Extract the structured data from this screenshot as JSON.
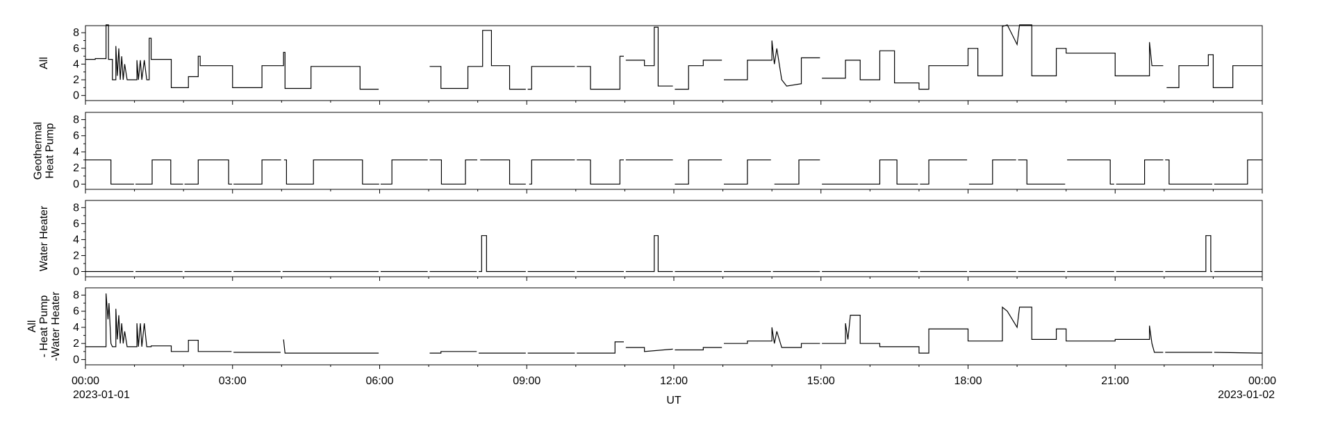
{
  "xaxis": {
    "xlim": [
      0,
      24
    ],
    "xticks": [
      {
        "value": 0,
        "label": "00:00"
      },
      {
        "value": 3,
        "label": "03:00"
      },
      {
        "value": 6,
        "label": "06:00"
      },
      {
        "value": 9,
        "label": "09:00"
      },
      {
        "value": 12,
        "label": "12:00"
      },
      {
        "value": 15,
        "label": "15:00"
      },
      {
        "value": 18,
        "label": "18:00"
      },
      {
        "value": 21,
        "label": "21:00"
      },
      {
        "value": 24,
        "label": "00:00"
      }
    ],
    "date_labels": [
      {
        "value": 0,
        "label": "2023-01-01"
      },
      {
        "value": 24,
        "label": "2023-01-02"
      }
    ],
    "xminorticks": [
      1,
      2,
      4,
      5,
      7,
      8,
      10,
      11,
      13,
      14,
      16,
      17,
      19,
      20,
      22,
      23
    ],
    "xlabel": "UT"
  },
  "chart_data": [
    {
      "type": "line",
      "ylabel": [
        "All"
      ],
      "color": "#000000",
      "ylim": [
        -0.65,
        8.9
      ],
      "yticks": [
        0,
        2,
        4,
        6,
        8
      ],
      "yminorticks": [
        1,
        3,
        5,
        7
      ],
      "x": [
        0,
        0.2,
        0.2,
        0.42,
        0.42,
        0.47,
        0.47,
        0.55,
        0.55,
        0.62,
        0.62,
        0.65,
        0.68,
        0.71,
        0.74,
        0.77,
        0.8,
        0.85,
        1.05,
        1.05,
        1.08,
        1.12,
        1.15,
        1.2,
        1.25,
        1.3,
        1.3,
        1.34,
        1.34,
        1.75,
        1.75,
        2.1,
        2.1,
        2.3,
        2.3,
        2.34,
        2.34,
        3.0,
        3.0,
        3.6,
        3.6,
        4.04,
        4.04,
        4.07,
        4.07,
        4.6,
        4.6,
        5.6,
        5.6,
        5.98,
        6.0,
        7.02,
        7.25,
        7.25,
        7.8,
        7.8,
        8.1,
        8.1,
        8.28,
        8.28,
        8.65,
        8.65,
        8.98,
        9.0,
        9.02,
        9.1,
        9.1,
        9.98,
        10.0,
        10.02,
        10.3,
        10.3,
        10.9,
        10.9,
        10.98,
        11.0,
        11.02,
        11.4,
        11.4,
        11.6,
        11.6,
        11.68,
        11.68,
        11.98,
        12.0,
        12.02,
        12.3,
        12.3,
        12.6,
        12.6,
        12.98,
        13.0,
        13.02,
        13.5,
        13.5,
        14.0,
        14.0,
        14.05,
        14.1,
        14.2,
        14.3,
        14.6,
        14.6,
        14.98,
        15.0,
        15.02,
        15.5,
        15.5,
        15.8,
        15.8,
        16.2,
        16.2,
        16.5,
        16.5,
        17.0,
        17.0,
        17.2,
        17.2,
        18.0,
        18.0,
        18.2,
        18.2,
        18.7,
        18.7,
        18.8,
        19.0,
        19.05,
        19.3,
        19.3,
        19.8,
        19.8,
        20.0,
        20.0,
        21.0,
        21.0,
        21.7,
        21.7,
        21.75,
        21.98,
        22.0,
        22.05,
        22.3,
        22.3,
        22.9,
        22.9,
        23.0,
        23.0,
        23.4,
        23.4,
        24
      ],
      "values": [
        4.6,
        4.6,
        4.7,
        4.7,
        9,
        9,
        4.6,
        4.6,
        2,
        2,
        6.3,
        2.5,
        6,
        2,
        5,
        2,
        4,
        2,
        2,
        4.5,
        2,
        4.5,
        2,
        4.5,
        2,
        2,
        7.3,
        7.3,
        4.6,
        4.6,
        1,
        1,
        2.4,
        2.4,
        5,
        5,
        3.8,
        3.8,
        1,
        1,
        3.8,
        3.8,
        5.5,
        5.5,
        0.9,
        0.9,
        3.7,
        3.7,
        0.8,
        0.8,
        null,
        3.7,
        3.7,
        0.9,
        0.9,
        3.7,
        3.7,
        8.3,
        8.3,
        3.8,
        3.8,
        0.8,
        0.8,
        null,
        0.8,
        0.8,
        3.7,
        3.7,
        null,
        3.7,
        3.7,
        0.8,
        0.8,
        5,
        5,
        null,
        4.5,
        4.5,
        3.8,
        3.8,
        8.7,
        8.7,
        1.2,
        1.2,
        null,
        0.8,
        0.8,
        3.8,
        3.8,
        4.5,
        4.5,
        null,
        2,
        2,
        4.5,
        4.5,
        7,
        4,
        6,
        2,
        1.2,
        1.5,
        4.8,
        4.8,
        null,
        2.2,
        2.2,
        4.5,
        4.5,
        2,
        2,
        5.7,
        5.7,
        1.6,
        1.6,
        0.8,
        0.8,
        3.8,
        3.8,
        6,
        6,
        2.5,
        2.5,
        8.8,
        9,
        6.5,
        9,
        9,
        2.5,
        2.5,
        6,
        6,
        5.4,
        5.4,
        2.5,
        2.5,
        6.8,
        3.8,
        3.8,
        null,
        1,
        1,
        3.8,
        3.8,
        5.2,
        5.2,
        1,
        1,
        3.8,
        3.8
      ]
    },
    {
      "type": "line",
      "ylabel": [
        "Geothermal",
        "Heat Pump"
      ],
      "color": "#000000",
      "ylim": [
        -0.65,
        8.9
      ],
      "yticks": [
        0,
        2,
        4,
        6,
        8
      ],
      "yminorticks": [
        1,
        3,
        5,
        7
      ],
      "x": [
        0,
        0.52,
        0.52,
        0.99,
        1.0,
        1.02,
        1.36,
        1.36,
        1.74,
        1.74,
        1.99,
        2.0,
        2.02,
        2.3,
        2.3,
        2.92,
        2.92,
        2.99,
        3.0,
        3.02,
        3.6,
        3.6,
        3.99,
        4.0,
        4.05,
        4.1,
        4.1,
        4.65,
        4.65,
        5.65,
        5.65,
        5.99,
        6.0,
        6.02,
        6.25,
        6.25,
        6.98,
        7.0,
        7.02,
        7.26,
        7.26,
        7.75,
        7.75,
        7.99,
        8.0,
        8.05,
        8.65,
        8.65,
        8.98,
        9.0,
        9.05,
        9.1,
        9.1,
        9.98,
        10.0,
        10.02,
        10.3,
        10.3,
        10.9,
        10.9,
        10.98,
        11.0,
        11.02,
        11.98,
        12.0,
        12.02,
        12.3,
        12.3,
        12.98,
        13.0,
        13.02,
        13.5,
        13.5,
        13.98,
        14.0,
        14.05,
        14.55,
        14.55,
        14.98,
        15.0,
        15.02,
        16.2,
        16.2,
        16.55,
        16.55,
        16.98,
        17.0,
        17.02,
        17.2,
        17.2,
        17.98,
        18.0,
        18.02,
        18.5,
        18.5,
        18.98,
        19.0,
        19.02,
        19.2,
        19.2,
        19.98,
        20.0,
        20.02,
        20.9,
        20.9,
        20.98,
        21.0,
        21.02,
        21.6,
        21.6,
        21.98,
        22.0,
        22.02,
        22.1,
        22.1,
        22.98,
        23.0,
        23.02,
        23.7,
        23.7,
        24
      ],
      "values": [
        3,
        3,
        0,
        0,
        null,
        0,
        0,
        3,
        3,
        0,
        0,
        null,
        0,
        0,
        3,
        3,
        0,
        0,
        null,
        0,
        0,
        3,
        3,
        null,
        3,
        3,
        0,
        0,
        3,
        3,
        0,
        0,
        null,
        0,
        0,
        3,
        3,
        null,
        3,
        3,
        0,
        0,
        3,
        3,
        null,
        3,
        3,
        0,
        0,
        null,
        0,
        0,
        3,
        3,
        null,
        3,
        3,
        0,
        0,
        3,
        3,
        null,
        3,
        3,
        null,
        0,
        0,
        3,
        3,
        null,
        0,
        0,
        3,
        3,
        null,
        0,
        0,
        3,
        3,
        null,
        0,
        0,
        3,
        3,
        0,
        0,
        null,
        0,
        0,
        3,
        3,
        null,
        0,
        0,
        3,
        3,
        null,
        3,
        3,
        0,
        0,
        null,
        3,
        3,
        0,
        0,
        null,
        0,
        0,
        3,
        3,
        null,
        3,
        3,
        0,
        0,
        null,
        0,
        0,
        3,
        3
      ]
    },
    {
      "type": "line",
      "ylabel": [
        "Water Heater"
      ],
      "color": "#000000",
      "ylim": [
        -0.65,
        8.9
      ],
      "yticks": [
        0,
        2,
        4,
        6,
        8
      ],
      "yminorticks": [
        1,
        3,
        5,
        7
      ],
      "x": [
        0,
        0.98,
        1.0,
        1.02,
        1.98,
        2.0,
        2.02,
        2.98,
        3.0,
        3.02,
        3.98,
        4.0,
        4.02,
        5.98,
        6.0,
        6.02,
        6.98,
        7.0,
        7.02,
        7.98,
        8.0,
        8.02,
        8.08,
        8.08,
        8.18,
        8.18,
        8.98,
        9.0,
        9.02,
        9.98,
        10.0,
        10.02,
        10.98,
        11.0,
        11.02,
        11.6,
        11.6,
        11.68,
        11.68,
        11.98,
        12.0,
        12.02,
        12.98,
        13.0,
        13.02,
        13.98,
        14.0,
        14.02,
        14.98,
        15.0,
        15.02,
        16.98,
        17.0,
        17.02,
        17.98,
        18.0,
        18.02,
        18.98,
        19.0,
        19.02,
        19.98,
        20.0,
        20.02,
        20.98,
        21.0,
        21.02,
        21.98,
        22.0,
        22.02,
        22.85,
        22.85,
        22.95,
        22.95,
        22.98,
        23.0,
        23.02,
        24
      ],
      "values": [
        0,
        0,
        null,
        0,
        0,
        null,
        0,
        0,
        null,
        0,
        0,
        null,
        0,
        0,
        null,
        0,
        0,
        null,
        0,
        0,
        null,
        0,
        0,
        4.5,
        4.5,
        0,
        0,
        null,
        0,
        0,
        null,
        0,
        0,
        null,
        0,
        0,
        4.5,
        4.5,
        0,
        0,
        null,
        0,
        0,
        null,
        0,
        0,
        null,
        0,
        0,
        null,
        0,
        0,
        null,
        0,
        0,
        null,
        0,
        0,
        null,
        0,
        0,
        null,
        0,
        0,
        null,
        0,
        0,
        null,
        0,
        0,
        4.5,
        4.5,
        0,
        0,
        null,
        0,
        0
      ]
    },
    {
      "type": "line",
      "ylabel": [
        "All",
        "- Heat Pump",
        "-Water Heater"
      ],
      "color": "#000000",
      "ylim": [
        -0.65,
        8.9
      ],
      "yticks": [
        0,
        2,
        4,
        6,
        8
      ],
      "yminorticks": [
        1,
        3,
        5,
        7
      ],
      "x": [
        0,
        0.42,
        0.42,
        0.46,
        0.48,
        0.52,
        0.55,
        0.62,
        0.62,
        0.65,
        0.68,
        0.71,
        0.74,
        0.77,
        0.8,
        0.85,
        1.05,
        1.05,
        1.08,
        1.12,
        1.15,
        1.2,
        1.25,
        1.34,
        1.34,
        1.75,
        1.75,
        2.1,
        2.1,
        2.3,
        2.3,
        2.98,
        3.0,
        3.02,
        3.98,
        4.0,
        4.04,
        4.07,
        5.98,
        6.0,
        7.02,
        7.25,
        7.25,
        7.98,
        8.0,
        8.02,
        8.98,
        9.0,
        9.02,
        9.98,
        10.0,
        10.02,
        10.8,
        10.8,
        10.98,
        11.0,
        11.02,
        11.4,
        11.4,
        11.98,
        12.0,
        12.02,
        12.6,
        12.6,
        12.98,
        13.0,
        13.02,
        13.5,
        13.5,
        14.0,
        14.0,
        14.05,
        14.1,
        14.2,
        14.6,
        14.6,
        14.98,
        15.0,
        15.02,
        15.5,
        15.5,
        15.55,
        15.6,
        15.8,
        15.8,
        16.2,
        16.2,
        17.0,
        17.0,
        17.2,
        17.2,
        18.0,
        18.0,
        18.7,
        18.7,
        18.8,
        19.0,
        19.05,
        19.3,
        19.3,
        19.8,
        19.8,
        20.0,
        20.0,
        21.0,
        21.0,
        21.7,
        21.7,
        21.75,
        21.8,
        21.98,
        22.0,
        22.02,
        22.98,
        23.0,
        23.02,
        24
      ],
      "values": [
        1.6,
        1.6,
        8.2,
        5,
        7,
        2,
        1.6,
        1.6,
        6.3,
        2.5,
        5.5,
        2,
        4.5,
        2,
        3.5,
        1.6,
        1.6,
        4.5,
        1.6,
        4.5,
        1.6,
        4.5,
        1.6,
        1.6,
        1.7,
        1.7,
        1,
        1,
        2.4,
        2.4,
        1,
        1,
        null,
        0.9,
        0.9,
        null,
        2.5,
        0.8,
        0.8,
        null,
        0.8,
        0.8,
        1,
        1,
        null,
        0.8,
        0.8,
        null,
        0.8,
        0.8,
        null,
        0.8,
        0.8,
        2.2,
        2.2,
        null,
        1.5,
        1.5,
        1,
        1.3,
        null,
        1.2,
        1.2,
        1.5,
        1.5,
        null,
        2,
        2,
        2.3,
        2.3,
        4,
        2,
        3.5,
        1.5,
        1.5,
        2,
        2,
        null,
        2,
        2,
        4.5,
        2.5,
        5.5,
        5.5,
        2,
        2,
        1.6,
        1.6,
        0.8,
        0.8,
        3.8,
        3.8,
        2.3,
        2.3,
        6.5,
        6,
        4,
        6.5,
        6.5,
        2.5,
        2.5,
        3.8,
        3.8,
        2.3,
        2.3,
        2.5,
        2.5,
        4.2,
        2,
        0.9,
        0.9,
        null,
        0.9,
        0.9,
        null,
        0.9,
        0.8
      ]
    }
  ]
}
